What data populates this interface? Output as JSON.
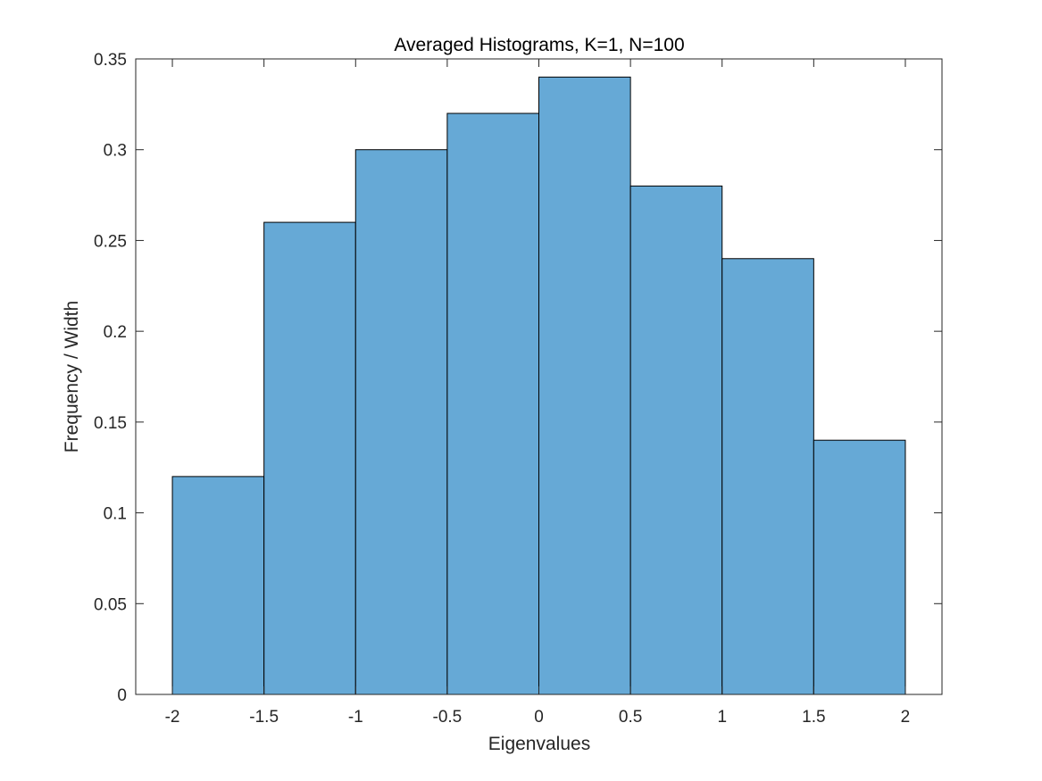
{
  "chart_data": {
    "type": "bar",
    "title": "Averaged Histograms, K=1, N=100",
    "xlabel": "Eigenvalues",
    "ylabel": "Frequency / Width",
    "bin_edges": [
      -2,
      -1.5,
      -1,
      -0.5,
      0,
      0.5,
      1,
      1.5,
      2
    ],
    "values": [
      0.12,
      0.26,
      0.3,
      0.32,
      0.34,
      0.28,
      0.24,
      0.14
    ],
    "xlim": [
      -2.2,
      2.2
    ],
    "ylim": [
      0,
      0.35
    ],
    "xticks": [
      -2,
      -1.5,
      -1,
      -0.5,
      0,
      0.5,
      1,
      1.5,
      2
    ],
    "xtick_labels": [
      "-2",
      "-1.5",
      "-1",
      "-0.5",
      "0",
      "0.5",
      "1",
      "1.5",
      "2"
    ],
    "yticks": [
      0,
      0.05,
      0.1,
      0.15,
      0.2,
      0.25,
      0.3,
      0.35
    ],
    "ytick_labels": [
      "0",
      "0.05",
      "0.1",
      "0.15",
      "0.2",
      "0.25",
      "0.3",
      "0.35"
    ],
    "grid": false,
    "legend": false,
    "bar_color": "#66a9d6",
    "bar_edge_color": "#000000"
  }
}
